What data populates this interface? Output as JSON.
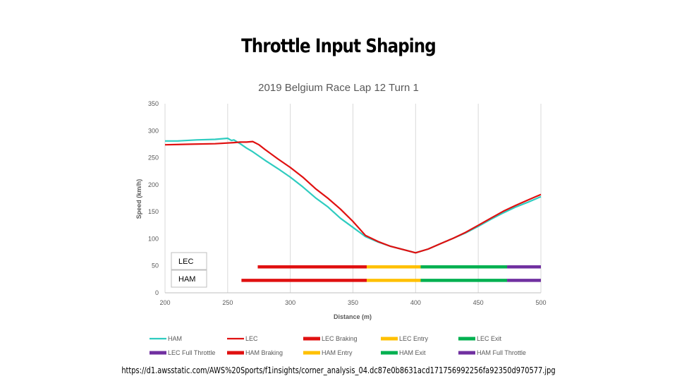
{
  "slide": {
    "title": "Throttle Input Shaping",
    "source_url": "https://d1.awsstatic.com/AWS%20Sports/f1insights/corner_analysis_04.dc87e0b8631acd171756992256fa92350d970577.jpg"
  },
  "chart_data": {
    "type": "line",
    "title": "2019 Belgium Race Lap 12 Turn 1",
    "xlabel": "Distance (m)",
    "ylabel": "Speed (km/h)",
    "xlim": [
      200,
      500
    ],
    "ylim": [
      0,
      350
    ],
    "xticks": [
      200,
      250,
      300,
      350,
      400,
      450,
      500
    ],
    "yticks": [
      0,
      50,
      100,
      150,
      200,
      250,
      300,
      350
    ],
    "grid": "vertical",
    "legend_position": "bottom",
    "series": [
      {
        "name": "HAM",
        "color": "#2ECCC0",
        "x": [
          200,
          210,
          225,
          240,
          250,
          253,
          255,
          257,
          260,
          265,
          270,
          280,
          290,
          300,
          310,
          320,
          330,
          340,
          350,
          360,
          370,
          380,
          390,
          400,
          410,
          420,
          430,
          440,
          450,
          460,
          470,
          480,
          490,
          500
        ],
        "y": [
          281,
          281,
          283,
          284,
          286,
          282,
          283,
          280,
          276,
          268,
          261,
          245,
          230,
          214,
          196,
          176,
          159,
          138,
          121,
          104,
          94,
          86,
          80,
          74,
          81,
          91,
          101,
          111,
          123,
          136,
          148,
          159,
          168,
          178
        ]
      },
      {
        "name": "LEC",
        "color": "#E01010",
        "x": [
          200,
          220,
          240,
          255,
          260,
          265,
          270,
          275,
          280,
          290,
          300,
          310,
          320,
          330,
          340,
          350,
          360,
          370,
          380,
          390,
          400,
          410,
          420,
          430,
          440,
          450,
          460,
          470,
          480,
          490,
          500
        ],
        "y": [
          274,
          275,
          276,
          278,
          279,
          279,
          280,
          274,
          265,
          248,
          232,
          214,
          193,
          175,
          155,
          132,
          106,
          95,
          86,
          80,
          74,
          81,
          91,
          101,
          112,
          125,
          138,
          151,
          162,
          172,
          182
        ]
      }
    ],
    "phases": [
      {
        "driver": "LEC",
        "y": 48,
        "segments": [
          {
            "phase": "Braking",
            "from": 274,
            "to": 361,
            "color": "#E01010"
          },
          {
            "phase": "Entry",
            "from": 361,
            "to": 404,
            "color": "#FFC000"
          },
          {
            "phase": "Exit",
            "from": 404,
            "to": 473,
            "color": "#00B050"
          },
          {
            "phase": "Full Throttle",
            "from": 473,
            "to": 500,
            "color": "#7030A0"
          }
        ]
      },
      {
        "driver": "HAM",
        "y": 23,
        "segments": [
          {
            "phase": "Braking",
            "from": 261,
            "to": 361,
            "color": "#E01010"
          },
          {
            "phase": "Entry",
            "from": 361,
            "to": 404,
            "color": "#FFC000"
          },
          {
            "phase": "Exit",
            "from": 404,
            "to": 473,
            "color": "#00B050"
          },
          {
            "phase": "Full Throttle",
            "from": 473,
            "to": 500,
            "color": "#7030A0"
          }
        ]
      }
    ],
    "legend": [
      {
        "label": "HAM",
        "color": "#2ECCC0",
        "style": "line"
      },
      {
        "label": "LEC",
        "color": "#E01010",
        "style": "line"
      },
      {
        "label": "LEC Braking",
        "color": "#E01010",
        "style": "bar"
      },
      {
        "label": "LEC Entry",
        "color": "#FFC000",
        "style": "bar"
      },
      {
        "label": "LEC Exit",
        "color": "#00B050",
        "style": "bar"
      },
      {
        "label": "LEC Full Throttle",
        "color": "#7030A0",
        "style": "bar"
      },
      {
        "label": "HAM Braking",
        "color": "#E01010",
        "style": "bar"
      },
      {
        "label": "HAM Entry",
        "color": "#FFC000",
        "style": "bar"
      },
      {
        "label": "HAM Exit",
        "color": "#00B050",
        "style": "bar"
      },
      {
        "label": "HAM Full Throttle",
        "color": "#7030A0",
        "style": "bar"
      }
    ]
  }
}
